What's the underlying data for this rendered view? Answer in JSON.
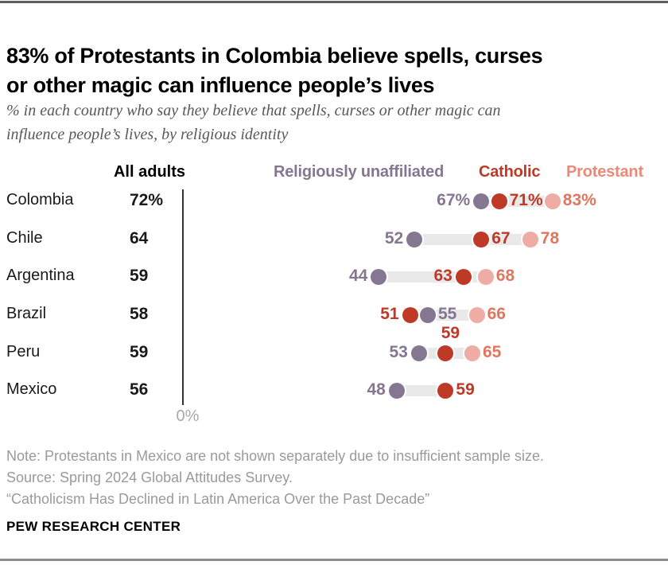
{
  "header": {
    "title_line1": "83% of Protestants in Colombia believe spells, curses",
    "title_line2": "or other magic can influence people’s lives",
    "subtitle_line1": "% in each country who say they believe that spells, curses or other magic can",
    "subtitle_line2": "influence people’s lives, by religious identity"
  },
  "columns": {
    "all_adults_header": "All adults"
  },
  "legend": [
    {
      "key": "unaffiliated",
      "label": "Religiously unaffiliated",
      "color": "#857691"
    },
    {
      "key": "catholic",
      "label": "Catholic",
      "color": "#bf3927"
    },
    {
      "key": "protestant",
      "label": "Protestant",
      "color": "#ec8a79"
    }
  ],
  "chart_data": {
    "type": "scatter",
    "subtype": "dot-plot-horizontal",
    "xlabel": "",
    "ylabel": "",
    "axis_zero_label": "0%",
    "xlim": [
      0,
      100
    ],
    "grid": false,
    "legend_position": "top",
    "series_colors": {
      "unaffiliated": {
        "dot": "#857691",
        "text": "#857691"
      },
      "catholic": {
        "dot": "#bf3927",
        "text": "#bf3927"
      },
      "protestant": {
        "dot": "#eeaca4",
        "text": "#e1765f"
      }
    },
    "rows": [
      {
        "country": "Colombia",
        "all_adults": "72%",
        "points": [
          {
            "series": "unaffiliated",
            "value": 67,
            "label": "67%",
            "label_pos": "left"
          },
          {
            "series": "catholic",
            "value": 71,
            "label": "71%",
            "label_pos": "right"
          },
          {
            "series": "protestant",
            "value": 83,
            "label": "83%",
            "label_pos": "right"
          }
        ]
      },
      {
        "country": "Chile",
        "all_adults": "64",
        "points": [
          {
            "series": "unaffiliated",
            "value": 52,
            "label": "52",
            "label_pos": "left"
          },
          {
            "series": "catholic",
            "value": 67,
            "label": "67",
            "label_pos": "right"
          },
          {
            "series": "protestant",
            "value": 78,
            "label": "78",
            "label_pos": "right"
          }
        ]
      },
      {
        "country": "Argentina",
        "all_adults": "59",
        "points": [
          {
            "series": "unaffiliated",
            "value": 44,
            "label": "44",
            "label_pos": "left"
          },
          {
            "series": "catholic",
            "value": 63,
            "label": "63",
            "label_pos": "left"
          },
          {
            "series": "protestant",
            "value": 68,
            "label": "68",
            "label_pos": "right"
          }
        ]
      },
      {
        "country": "Brazil",
        "all_adults": "58",
        "points": [
          {
            "series": "catholic",
            "value": 51,
            "label": "51",
            "label_pos": "left"
          },
          {
            "series": "unaffiliated",
            "value": 55,
            "label": "55",
            "label_pos": "right"
          },
          {
            "series": "protestant",
            "value": 66,
            "label": "66",
            "label_pos": "right"
          }
        ]
      },
      {
        "country": "Peru",
        "all_adults": "59",
        "points": [
          {
            "series": "unaffiliated",
            "value": 53,
            "label": "53",
            "label_pos": "left"
          },
          {
            "series": "catholic",
            "value": 59,
            "label": "59",
            "label_pos": "above"
          },
          {
            "series": "protestant",
            "value": 65,
            "label": "65",
            "label_pos": "right"
          }
        ]
      },
      {
        "country": "Mexico",
        "all_adults": "56",
        "points": [
          {
            "series": "unaffiliated",
            "value": 48,
            "label": "48",
            "label_pos": "left"
          },
          {
            "series": "catholic",
            "value": 59,
            "label": "59",
            "label_pos": "right"
          }
        ]
      }
    ]
  },
  "footnotes": {
    "note": "Note: Protestants in Mexico are not shown separately due to insufficient sample size.",
    "source": "Source: Spring 2024 Global Attitudes Survey.",
    "report": "“Catholicism Has Declined in Latin America Over the Past Decade”"
  },
  "footer": {
    "brand": "PEW RESEARCH CENTER"
  }
}
